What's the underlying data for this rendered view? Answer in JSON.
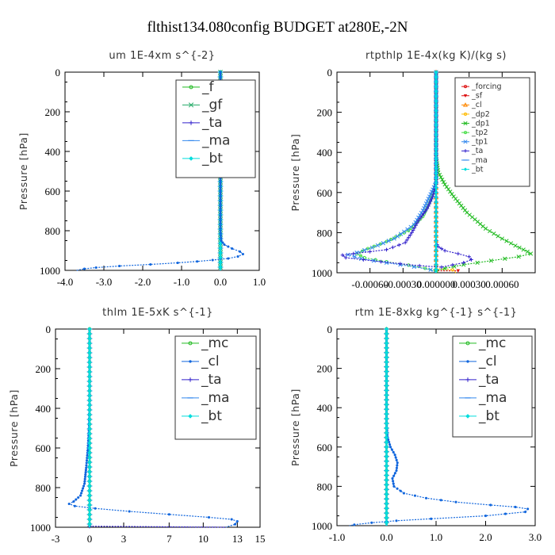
{
  "title": "flthist134.080config  BUDGET at280E,-2N",
  "colors": {
    "green": "#22bb22",
    "lightgreen": "#44dd44",
    "blue": "#1166dd",
    "indigo": "#3322cc",
    "dodger": "#3388ee",
    "cyan": "#00dddd",
    "red": "#dd1111",
    "orange": "#ff8800",
    "yellow": "#ffbb00",
    "black": "#000000"
  },
  "chart_data": [
    {
      "type": "line",
      "title": "um   1E-4xm s^{-2}",
      "ylabel": "Pressure [hPa]",
      "xlim": [
        -4.0,
        1.0
      ],
      "ylim": [
        1000,
        0
      ],
      "xticks": [
        "-4.0",
        "-3.0",
        "-2.0",
        "-1.0",
        "0.0",
        "1.0"
      ],
      "yticks": [
        "0",
        "200",
        "400",
        "600",
        "800",
        "1000"
      ],
      "legend": {
        "placement": "top-right",
        "size": "large"
      },
      "series": [
        {
          "name": "_f",
          "color": "#22bb22",
          "marker": "circle",
          "points": [
            [
              0,
              0
            ],
            [
              0,
              1000
            ]
          ]
        },
        {
          "name": "_gf",
          "color": "#22aa66",
          "marker": "x",
          "points": [
            [
              0,
              0
            ],
            [
              0,
              1000
            ]
          ]
        },
        {
          "name": "_ta",
          "color": "#3322cc",
          "marker": "plus",
          "points": [
            [
              0,
              0
            ],
            [
              0,
              1000
            ]
          ]
        },
        {
          "name": "_ma",
          "color": "#3388ee",
          "marker": "dash",
          "points": [
            [
              0,
              0
            ],
            [
              0,
              1000
            ]
          ]
        },
        {
          "name": "_bt",
          "color": "#00dddd",
          "marker": "diamond",
          "points": [
            [
              0,
              0
            ],
            [
              0,
              1000
            ]
          ]
        },
        {
          "name": "",
          "color": "#1166dd",
          "marker": "dot",
          "points": [
            [
              0,
              0
            ],
            [
              0,
              500
            ],
            [
              0,
              700
            ],
            [
              0,
              800
            ],
            [
              0.02,
              850
            ],
            [
              0.1,
              870
            ],
            [
              0.3,
              890
            ],
            [
              0.5,
              905
            ],
            [
              0.58,
              918
            ],
            [
              0.45,
              930
            ],
            [
              0.2,
              940
            ],
            [
              -0.2,
              948
            ],
            [
              -0.6,
              955
            ],
            [
              -1.1,
              962
            ],
            [
              -1.8,
              970
            ],
            [
              -2.6,
              978
            ],
            [
              -3.2,
              986
            ],
            [
              -3.5,
              992
            ],
            [
              -3.7,
              1000
            ]
          ]
        }
      ]
    },
    {
      "type": "line",
      "title": "rtpthlp   1E-4x(kg K)/(kg s)",
      "ylabel": "Pressure [hPa]",
      "xlim": [
        -0.0009,
        0.0009
      ],
      "ylim": [
        1000,
        0
      ],
      "xticks": [
        "-0.00060",
        "-0.00030",
        "0.000000",
        "0.00030",
        "0.00060"
      ],
      "yticks": [
        "0",
        "200",
        "400",
        "600",
        "800",
        "1000"
      ],
      "legend": {
        "placement": "top-right",
        "size": "small"
      },
      "series": [
        {
          "name": "_forcing",
          "color": "#dd1111",
          "marker": "circle",
          "points": [
            [
              0,
              0
            ],
            [
              0,
              1000
            ]
          ]
        },
        {
          "name": "_sf",
          "color": "#dd1111",
          "marker": "triangle-down",
          "points": [
            [
              -1e-05,
              990
            ],
            [
              0.0002,
              990
            ],
            [
              0.0002,
              1000
            ]
          ]
        },
        {
          "name": "_cl",
          "color": "#ff8800",
          "marker": "triangle",
          "points": [
            [
              0,
              0
            ],
            [
              0,
              1000
            ]
          ]
        },
        {
          "name": "_dp2",
          "color": "#ffbb00",
          "marker": "circle",
          "points": [
            [
              0,
              980
            ],
            [
              0.00015,
              985
            ],
            [
              0.00018,
              1000
            ]
          ]
        },
        {
          "name": "_dp1",
          "color": "#22bb22",
          "marker": "x",
          "points": [
            [
              0,
              0
            ],
            [
              0,
              420
            ],
            [
              2e-05,
              500
            ],
            [
              8e-05,
              560
            ],
            [
              0.00016,
              620
            ],
            [
              0.00028,
              700
            ],
            [
              0.00045,
              780
            ],
            [
              0.0006,
              830
            ],
            [
              0.00072,
              865
            ],
            [
              0.00083,
              895
            ],
            [
              0.00086,
              905
            ],
            [
              0.00075,
              920
            ],
            [
              0.0005,
              940
            ],
            [
              0.00025,
              960
            ],
            [
              8e-05,
              978
            ],
            [
              0,
              990
            ],
            [
              0,
              1000
            ]
          ]
        },
        {
          "name": "_tp2",
          "color": "#44dd44",
          "marker": "circle",
          "points": [
            [
              0,
              0
            ],
            [
              0,
              550
            ],
            [
              -5e-05,
              640
            ],
            [
              -0.00012,
              720
            ],
            [
              -0.00025,
              790
            ],
            [
              -0.00045,
              845
            ],
            [
              -0.00062,
              880
            ],
            [
              -0.00072,
              905
            ],
            [
              -0.00065,
              925
            ],
            [
              -0.00045,
              945
            ],
            [
              -0.00025,
              962
            ],
            [
              -0.0001,
              978
            ],
            [
              0,
              990
            ],
            [
              0,
              1000
            ]
          ]
        },
        {
          "name": "_tp1",
          "color": "#3388ee",
          "marker": "x",
          "points": [
            [
              0,
              0
            ],
            [
              0,
              550
            ],
            [
              -6e-05,
              620
            ],
            [
              -0.00012,
              690
            ],
            [
              -0.0002,
              760
            ],
            [
              -0.00038,
              830
            ],
            [
              -0.00058,
              875
            ],
            [
              -0.00072,
              900
            ],
            [
              -0.0008,
              910
            ],
            [
              -0.00068,
              930
            ],
            [
              -0.00045,
              950
            ],
            [
              -0.0002,
              970
            ],
            [
              -5e-05,
              985
            ],
            [
              0,
              1000
            ]
          ]
        },
        {
          "name": "_ta",
          "color": "#3322cc",
          "marker": "plus",
          "points": [
            [
              0,
              0
            ],
            [
              0,
              560
            ],
            [
              -3e-05,
              620
            ],
            [
              -8e-05,
              680
            ],
            [
              -0.00016,
              740
            ],
            [
              -0.00022,
              800
            ],
            [
              -0.00028,
              850
            ],
            [
              -0.00045,
              885
            ],
            [
              -0.00075,
              905
            ],
            [
              -0.00085,
              912
            ],
            [
              -0.00082,
              925
            ],
            [
              -0.0005,
              945
            ],
            [
              -0.00015,
              965
            ],
            [
              5e-05,
              972
            ],
            [
              0.00025,
              950
            ],
            [
              0.00032,
              935
            ],
            [
              0.0003,
              920
            ],
            [
              0.0002,
              905
            ],
            [
              8e-05,
              890
            ],
            [
              2e-05,
              870
            ],
            [
              0,
              850
            ]
          ]
        },
        {
          "name": "_ma",
          "color": "#3388ee",
          "marker": "dash",
          "points": [
            [
              0,
              0
            ],
            [
              0,
              1000
            ]
          ]
        },
        {
          "name": "_bt",
          "color": "#00dddd",
          "marker": "diamond",
          "points": [
            [
              0,
              0
            ],
            [
              0,
              1000
            ]
          ]
        }
      ]
    },
    {
      "type": "line",
      "title": "thlm   1E-5xK s^{-1}",
      "ylabel": "Pressure [hPa]",
      "xlim": [
        -3,
        15
      ],
      "ylim": [
        1000,
        0
      ],
      "xticks": [
        "-3",
        "0",
        "3",
        "7",
        "10",
        "13",
        "15"
      ],
      "yticks": [
        "0",
        "200",
        "400",
        "600",
        "800",
        "1000"
      ],
      "legend": {
        "placement": "top-right",
        "size": "large"
      },
      "series": [
        {
          "name": "_mc",
          "color": "#22bb22",
          "marker": "circle",
          "points": [
            [
              0,
              0
            ],
            [
              0,
              1000
            ]
          ]
        },
        {
          "name": "_cl",
          "color": "#1166dd",
          "marker": "dot",
          "points": [
            [
              0,
              0
            ],
            [
              0,
              400
            ],
            [
              -0.05,
              500
            ],
            [
              -0.15,
              600
            ],
            [
              -0.3,
              700
            ],
            [
              -0.45,
              780
            ],
            [
              -0.8,
              840
            ],
            [
              -1.4,
              870
            ],
            [
              -1.8,
              882
            ],
            [
              -1.3,
              893
            ],
            [
              0.5,
              905
            ],
            [
              3.5,
              920
            ],
            [
              7,
              935
            ],
            [
              10.5,
              950
            ],
            [
              12.5,
              960
            ],
            [
              13,
              970
            ],
            [
              12.8,
              985
            ],
            [
              12,
              1000
            ]
          ]
        },
        {
          "name": "_ta",
          "color": "#3322cc",
          "marker": "plus",
          "points": [
            [
              0,
              995
            ],
            [
              12,
              1000
            ]
          ]
        },
        {
          "name": "_ma",
          "color": "#3388ee",
          "marker": "dash",
          "points": [
            [
              0,
              0
            ],
            [
              0,
              1000
            ]
          ]
        },
        {
          "name": "_bt",
          "color": "#00dddd",
          "marker": "diamond",
          "points": [
            [
              0,
              0
            ],
            [
              0,
              1000
            ]
          ]
        }
      ]
    },
    {
      "type": "line",
      "title": "rtm   1E-8xkg kg^{-1} s^{-1}",
      "ylabel": "Pressure [hPa]",
      "xlim": [
        -1.0,
        3.0
      ],
      "ylim": [
        1000,
        0
      ],
      "xticks": [
        "-1.0",
        "0.0",
        "1.0",
        "2.0",
        "3.0"
      ],
      "yticks": [
        "0",
        "200",
        "400",
        "600",
        "800",
        "1000"
      ],
      "legend": {
        "placement": "top-right",
        "size": "large"
      },
      "series": [
        {
          "name": "_mc",
          "color": "#22bb22",
          "marker": "circle",
          "points": [
            [
              0,
              0
            ],
            [
              0,
              1000
            ]
          ]
        },
        {
          "name": "_cl",
          "color": "#1166dd",
          "marker": "dot",
          "points": [
            [
              0,
              0
            ],
            [
              0,
              480
            ],
            [
              0.02,
              550
            ],
            [
              0.08,
              600
            ],
            [
              0.17,
              640
            ],
            [
              0.22,
              680
            ],
            [
              0.2,
              720
            ],
            [
              0.12,
              760
            ],
            [
              0.15,
              800
            ],
            [
              0.35,
              835
            ],
            [
              0.8,
              860
            ],
            [
              1.4,
              880
            ],
            [
              2.1,
              895
            ],
            [
              2.6,
              905
            ],
            [
              2.85,
              915
            ],
            [
              2.8,
              930
            ],
            [
              2.0,
              950
            ],
            [
              0.9,
              965
            ],
            [
              0.2,
              975
            ],
            [
              -0.3,
              985
            ],
            [
              -0.65,
              995
            ],
            [
              -0.75,
              1000
            ]
          ]
        },
        {
          "name": "_ta",
          "color": "#3322cc",
          "marker": "plus",
          "points": [
            [
              0,
              0
            ],
            [
              0,
              1000
            ]
          ]
        },
        {
          "name": "_ma",
          "color": "#3388ee",
          "marker": "dash",
          "points": [
            [
              0,
              0
            ],
            [
              0,
              1000
            ]
          ]
        },
        {
          "name": "_bt",
          "color": "#00dddd",
          "marker": "diamond",
          "points": [
            [
              0,
              0
            ],
            [
              0,
              1000
            ]
          ]
        }
      ]
    }
  ]
}
